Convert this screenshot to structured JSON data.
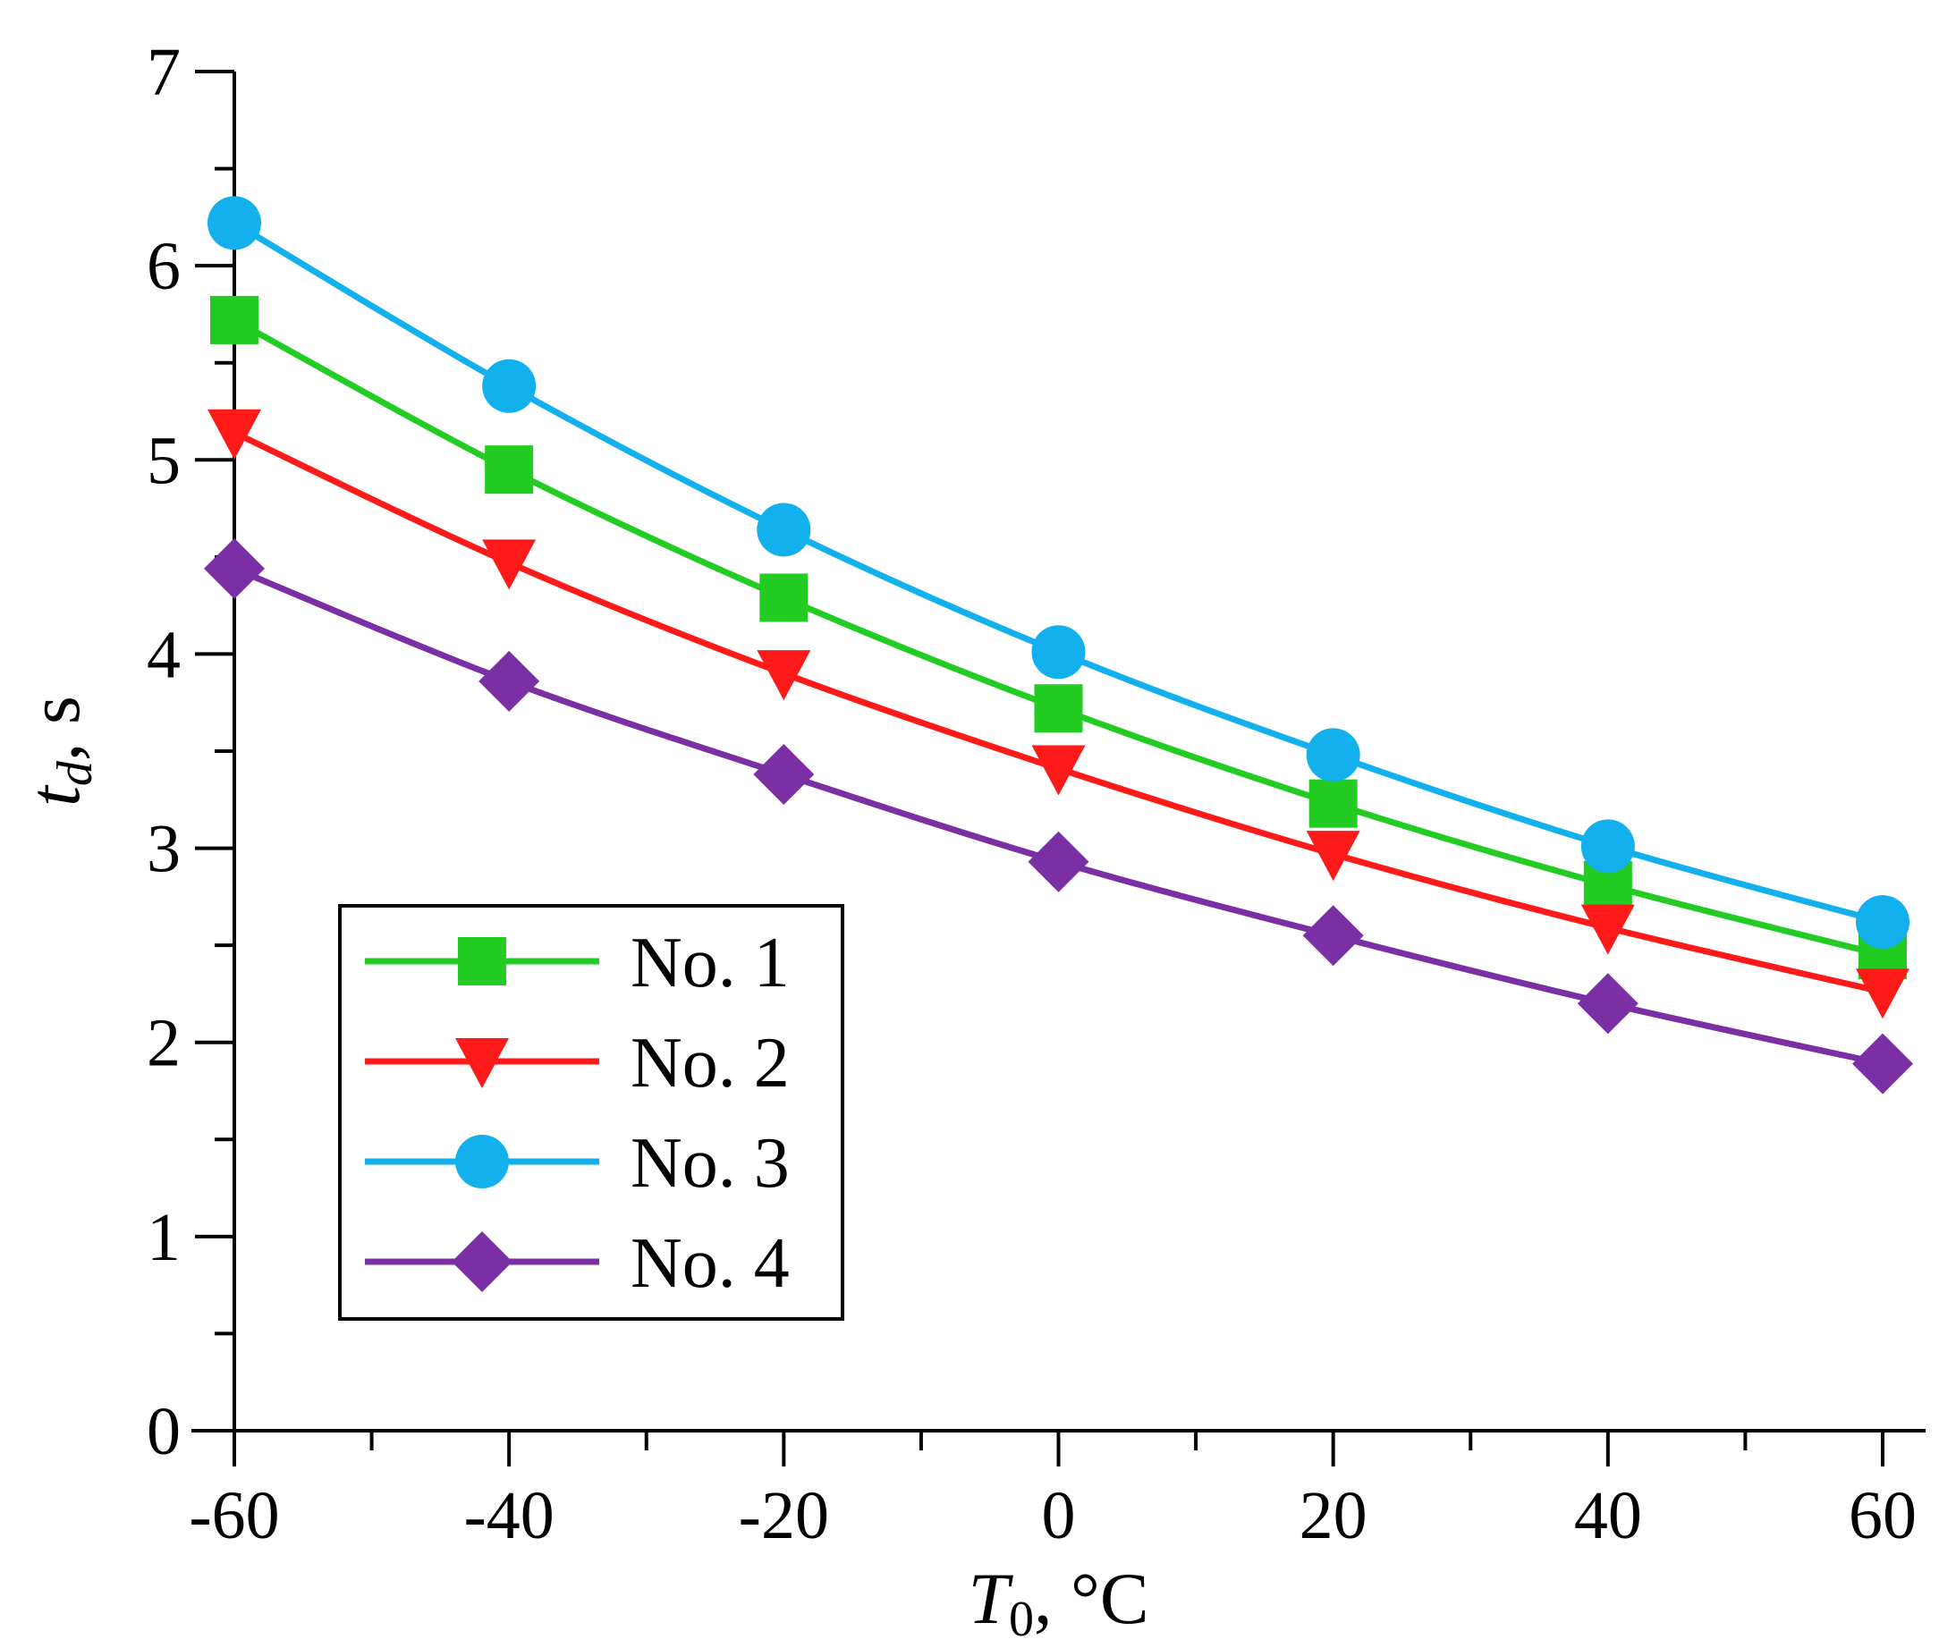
{
  "chart_data": {
    "type": "line",
    "title": "",
    "xlabel": {
      "main": "T",
      "sub": "0",
      "rest": ", °C"
    },
    "ylabel": {
      "main": "t",
      "sub": "d",
      "rest": ", s"
    },
    "x": [
      -60,
      -40,
      -20,
      0,
      20,
      40,
      60
    ],
    "xlim": [
      -60,
      60
    ],
    "ylim": [
      0,
      7
    ],
    "xticks": [
      "-60",
      "-40",
      "-20",
      "0",
      "20",
      "40",
      "60"
    ],
    "yticks": [
      "0",
      "1",
      "2",
      "3",
      "4",
      "5",
      "6",
      "7"
    ],
    "grid": false,
    "legend_position": "lower-left",
    "series": [
      {
        "name": "No. 1",
        "color": "#22cc22",
        "marker": "square",
        "values": [
          5.72,
          4.95,
          4.29,
          3.72,
          3.23,
          2.81,
          2.45
        ]
      },
      {
        "name": "No. 2",
        "color": "#ff1a1a",
        "marker": "triangle-down",
        "values": [
          5.14,
          4.47,
          3.9,
          3.41,
          2.97,
          2.59,
          2.26
        ]
      },
      {
        "name": "No. 3",
        "color": "#13b0ee",
        "marker": "circle",
        "values": [
          6.22,
          5.38,
          4.64,
          4.01,
          3.48,
          3.01,
          2.62
        ]
      },
      {
        "name": "No. 4",
        "color": "#7b2fa5",
        "marker": "diamond",
        "values": [
          4.44,
          3.86,
          3.38,
          2.93,
          2.55,
          2.2,
          1.89
        ]
      }
    ]
  }
}
